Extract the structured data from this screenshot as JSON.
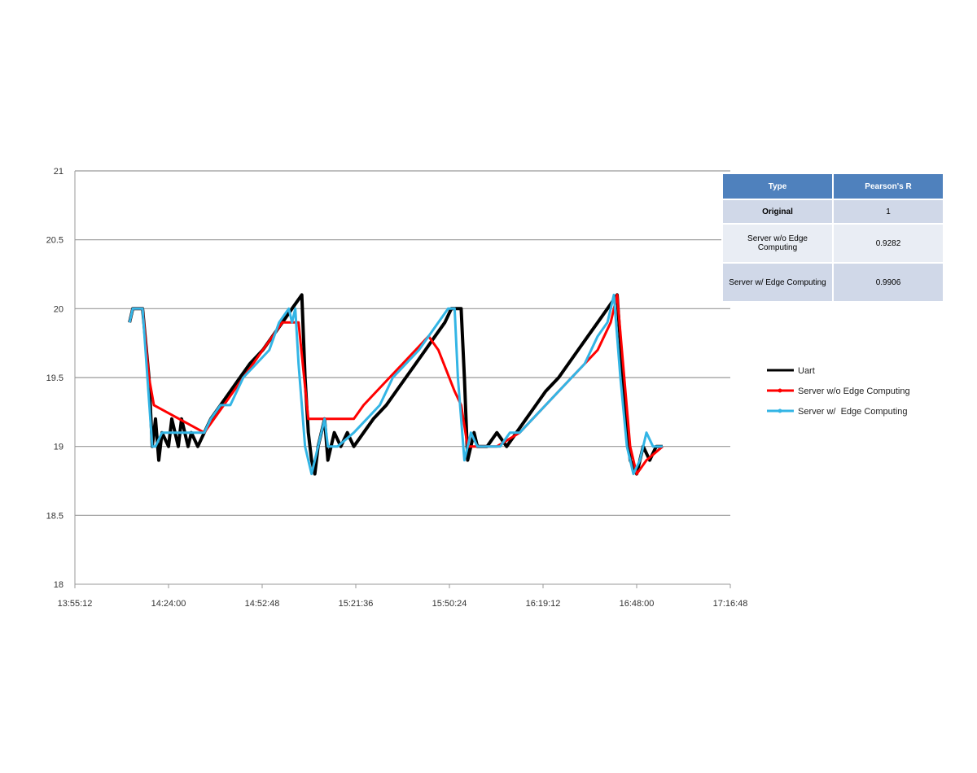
{
  "chart_data": {
    "type": "line",
    "x_format": "HH:MM:SS",
    "x_ticks": [
      "13:55:12",
      "14:24:00",
      "14:52:48",
      "15:21:36",
      "15:50:24",
      "16:19:12",
      "16:48:00",
      "17:16:48"
    ],
    "xlim": [
      "13:55:12",
      "17:16:48"
    ],
    "ylim": [
      18,
      21
    ],
    "y_ticks": [
      "18",
      "18.5",
      "19",
      "19.5",
      "20",
      "20.5",
      "21"
    ],
    "grid": "horizontal",
    "legend_position": "right",
    "series": [
      {
        "name": "Uart",
        "color": "#000000",
        "points": [
          [
            "14:12:00",
            19.9
          ],
          [
            "14:13:00",
            20.0
          ],
          [
            "14:16:00",
            20.0
          ],
          [
            "14:18:00",
            19.5
          ],
          [
            "14:19:00",
            19.0
          ],
          [
            "14:20:00",
            19.2
          ],
          [
            "14:21:00",
            18.9
          ],
          [
            "14:22:00",
            19.1
          ],
          [
            "14:24:00",
            19.0
          ],
          [
            "14:25:00",
            19.2
          ],
          [
            "14:27:00",
            19.0
          ],
          [
            "14:28:00",
            19.2
          ],
          [
            "14:30:00",
            19.0
          ],
          [
            "14:31:00",
            19.1
          ],
          [
            "14:33:00",
            19.0
          ],
          [
            "14:35:00",
            19.1
          ],
          [
            "14:37:00",
            19.2
          ],
          [
            "14:40:00",
            19.3
          ],
          [
            "14:43:00",
            19.4
          ],
          [
            "14:46:00",
            19.5
          ],
          [
            "14:49:00",
            19.6
          ],
          [
            "14:53:00",
            19.7
          ],
          [
            "14:56:00",
            19.8
          ],
          [
            "14:59:00",
            19.9
          ],
          [
            "15:02:00",
            20.0
          ],
          [
            "15:05:00",
            20.1
          ],
          [
            "15:06:00",
            19.5
          ],
          [
            "15:07:00",
            19.1
          ],
          [
            "15:08:00",
            18.9
          ],
          [
            "15:09:00",
            18.8
          ],
          [
            "15:10:00",
            19.0
          ],
          [
            "15:12:00",
            19.2
          ],
          [
            "15:13:00",
            18.9
          ],
          [
            "15:15:00",
            19.1
          ],
          [
            "15:17:00",
            19.0
          ],
          [
            "15:19:00",
            19.1
          ],
          [
            "15:21:00",
            19.0
          ],
          [
            "15:24:00",
            19.1
          ],
          [
            "15:27:00",
            19.2
          ],
          [
            "15:31:00",
            19.3
          ],
          [
            "15:34:00",
            19.4
          ],
          [
            "15:37:00",
            19.5
          ],
          [
            "15:40:00",
            19.6
          ],
          [
            "15:43:00",
            19.7
          ],
          [
            "15:46:00",
            19.8
          ],
          [
            "15:49:00",
            19.9
          ],
          [
            "15:51:00",
            20.0
          ],
          [
            "15:54:00",
            20.0
          ],
          [
            "15:55:00",
            19.5
          ],
          [
            "15:56:00",
            18.9
          ],
          [
            "15:58:00",
            19.1
          ],
          [
            "15:59:00",
            19.0
          ],
          [
            "16:02:00",
            19.0
          ],
          [
            "16:05:00",
            19.1
          ],
          [
            "16:08:00",
            19.0
          ],
          [
            "16:11:00",
            19.1
          ],
          [
            "16:14:00",
            19.2
          ],
          [
            "16:17:00",
            19.3
          ],
          [
            "16:20:00",
            19.4
          ],
          [
            "16:24:00",
            19.5
          ],
          [
            "16:27:00",
            19.6
          ],
          [
            "16:30:00",
            19.7
          ],
          [
            "16:33:00",
            19.8
          ],
          [
            "16:36:00",
            19.9
          ],
          [
            "16:39:00",
            20.0
          ],
          [
            "16:42:00",
            20.1
          ],
          [
            "16:44:00",
            19.4
          ],
          [
            "16:46:00",
            18.9
          ],
          [
            "16:48:00",
            18.8
          ],
          [
            "16:50:00",
            19.0
          ],
          [
            "16:52:00",
            18.9
          ],
          [
            "16:54:00",
            19.0
          ],
          [
            "16:56:00",
            19.0
          ]
        ]
      },
      {
        "name": "Server w/o Edge Computing",
        "color": "#ff0000",
        "points": [
          [
            "14:12:00",
            19.9
          ],
          [
            "14:13:00",
            20.0
          ],
          [
            "14:16:00",
            20.0
          ],
          [
            "14:18:00",
            19.5
          ],
          [
            "14:19:30",
            19.3
          ],
          [
            "14:35:00",
            19.1
          ],
          [
            "14:38:00",
            19.2
          ],
          [
            "14:41:00",
            19.3
          ],
          [
            "14:44:00",
            19.4
          ],
          [
            "14:47:00",
            19.5
          ],
          [
            "14:50:00",
            19.6
          ],
          [
            "14:53:00",
            19.7
          ],
          [
            "14:56:00",
            19.8
          ],
          [
            "14:59:00",
            19.9
          ],
          [
            "15:04:00",
            19.9
          ],
          [
            "15:07:00",
            19.2
          ],
          [
            "15:21:00",
            19.2
          ],
          [
            "15:24:00",
            19.3
          ],
          [
            "15:28:00",
            19.4
          ],
          [
            "15:32:00",
            19.5
          ],
          [
            "15:36:00",
            19.6
          ],
          [
            "15:40:00",
            19.7
          ],
          [
            "15:44:00",
            19.8
          ],
          [
            "15:47:00",
            19.7
          ],
          [
            "15:52:00",
            19.4
          ],
          [
            "15:54:00",
            19.3
          ],
          [
            "15:56:00",
            19.0
          ],
          [
            "16:05:00",
            19.0
          ],
          [
            "16:12:00",
            19.1
          ],
          [
            "16:16:00",
            19.2
          ],
          [
            "16:20:00",
            19.3
          ],
          [
            "16:24:00",
            19.4
          ],
          [
            "16:28:00",
            19.5
          ],
          [
            "16:32:00",
            19.6
          ],
          [
            "16:36:00",
            19.7
          ],
          [
            "16:40:00",
            19.9
          ],
          [
            "16:42:00",
            20.1
          ],
          [
            "16:46:00",
            19.0
          ],
          [
            "16:48:00",
            18.8
          ],
          [
            "16:51:00",
            18.9
          ],
          [
            "16:56:00",
            19.0
          ]
        ]
      },
      {
        "name": "Server w/  Edge Computing",
        "color": "#33b5e5",
        "points": [
          [
            "14:12:00",
            19.9
          ],
          [
            "14:13:00",
            20.0
          ],
          [
            "14:16:00",
            20.0
          ],
          [
            "14:19:00",
            19.0
          ],
          [
            "14:20:00",
            19.0
          ],
          [
            "14:22:00",
            19.1
          ],
          [
            "14:35:00",
            19.1
          ],
          [
            "14:37:00",
            19.2
          ],
          [
            "14:40:00",
            19.3
          ],
          [
            "14:43:00",
            19.3
          ],
          [
            "14:47:00",
            19.5
          ],
          [
            "14:51:00",
            19.6
          ],
          [
            "14:55:00",
            19.7
          ],
          [
            "14:58:00",
            19.9
          ],
          [
            "15:01:00",
            20.0
          ],
          [
            "15:02:00",
            19.9
          ],
          [
            "15:03:00",
            20.0
          ],
          [
            "15:04:00",
            19.6
          ],
          [
            "15:06:00",
            19.0
          ],
          [
            "15:08:00",
            18.8
          ],
          [
            "15:10:00",
            19.0
          ],
          [
            "15:12:00",
            19.2
          ],
          [
            "15:13:00",
            19.0
          ],
          [
            "15:16:00",
            19.0
          ],
          [
            "15:21:00",
            19.1
          ],
          [
            "15:25:00",
            19.2
          ],
          [
            "15:29:00",
            19.3
          ],
          [
            "15:33:00",
            19.5
          ],
          [
            "15:37:00",
            19.6
          ],
          [
            "15:41:00",
            19.7
          ],
          [
            "15:44:00",
            19.8
          ],
          [
            "15:47:00",
            19.9
          ],
          [
            "15:50:00",
            20.0
          ],
          [
            "15:52:00",
            20.0
          ],
          [
            "15:53:00",
            19.5
          ],
          [
            "15:55:00",
            18.9
          ],
          [
            "15:57:00",
            19.1
          ],
          [
            "15:59:00",
            19.0
          ],
          [
            "16:06:00",
            19.0
          ],
          [
            "16:09:00",
            19.1
          ],
          [
            "16:12:00",
            19.1
          ],
          [
            "16:16:00",
            19.2
          ],
          [
            "16:20:00",
            19.3
          ],
          [
            "16:24:00",
            19.4
          ],
          [
            "16:28:00",
            19.5
          ],
          [
            "16:32:00",
            19.6
          ],
          [
            "16:36:00",
            19.8
          ],
          [
            "16:39:00",
            19.9
          ],
          [
            "16:41:00",
            20.1
          ],
          [
            "16:43:00",
            19.5
          ],
          [
            "16:45:00",
            19.0
          ],
          [
            "16:47:00",
            18.8
          ],
          [
            "16:49:00",
            18.9
          ],
          [
            "16:51:00",
            19.1
          ],
          [
            "16:53:00",
            19.0
          ],
          [
            "16:56:00",
            19.0
          ]
        ]
      }
    ]
  },
  "table": {
    "headers": [
      "Type",
      "Pearson's R"
    ],
    "rows": [
      {
        "type": "Original",
        "r": "1"
      },
      {
        "type": "Server w/o Edge Computing",
        "r": "0.9282"
      },
      {
        "type": "Server w/  Edge Computing",
        "r": "0.9906"
      }
    ]
  }
}
